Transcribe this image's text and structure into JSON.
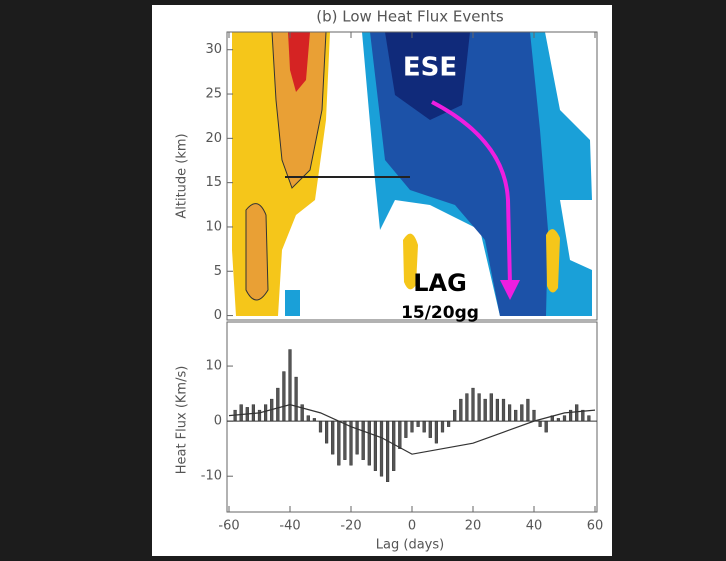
{
  "chart_data": [
    {
      "type": "contour",
      "title": "(b) Low Heat Flux Events",
      "y_label": "Altitude (km)",
      "ylim": [
        -0.5,
        32
      ],
      "yticks": [
        0,
        5,
        10,
        15,
        20,
        25,
        30
      ],
      "annotations": [
        "ESE",
        "LAG",
        "15/20gg"
      ]
    },
    {
      "type": "bar",
      "x_label": "Lag (days)",
      "y_label": "Heat Flux (Km/s)",
      "xlim": [
        -60,
        60
      ],
      "xticks": [
        -60,
        -40,
        -20,
        0,
        20,
        40,
        60
      ],
      "ylim": [
        -16.5,
        18
      ],
      "yticks": [
        -10,
        0,
        10
      ],
      "color": "#555555",
      "x": [
        -58,
        -56,
        -54,
        -52,
        -50,
        -48,
        -46,
        -44,
        -42,
        -40,
        -38,
        -36,
        -34,
        -32,
        -30,
        -28,
        -26,
        -24,
        -22,
        -20,
        -18,
        -16,
        -14,
        -12,
        -10,
        -8,
        -6,
        -4,
        -2,
        0,
        2,
        4,
        6,
        8,
        10,
        12,
        14,
        16,
        18,
        20,
        22,
        24,
        26,
        28,
        30,
        32,
        34,
        36,
        38,
        40,
        42,
        44,
        46,
        48,
        50,
        52,
        54,
        56,
        58
      ],
      "values": [
        2,
        3,
        2.5,
        3,
        2,
        3,
        4,
        6,
        9,
        13,
        8,
        3,
        1,
        0.5,
        -2,
        -4,
        -6,
        -8,
        -7,
        -8,
        -6,
        -7,
        -8,
        -9,
        -10,
        -11,
        -9,
        -5,
        -3,
        -2,
        -1,
        -2,
        -3,
        -4,
        -2,
        -1,
        2,
        4,
        5,
        6,
        5,
        4,
        5,
        4,
        4,
        3,
        2,
        3,
        4,
        2,
        -1,
        -2,
        1,
        0.5,
        1,
        2,
        3,
        2,
        1
      ],
      "line": {
        "color": "#333333",
        "x": [
          -60,
          -50,
          -40,
          -30,
          -20,
          -10,
          0,
          10,
          20,
          30,
          40,
          50,
          60
        ],
        "values": [
          1,
          1.5,
          3,
          1.5,
          -1,
          -3,
          -6,
          -5,
          -4,
          -2,
          0,
          1.5,
          2
        ]
      }
    }
  ]
}
